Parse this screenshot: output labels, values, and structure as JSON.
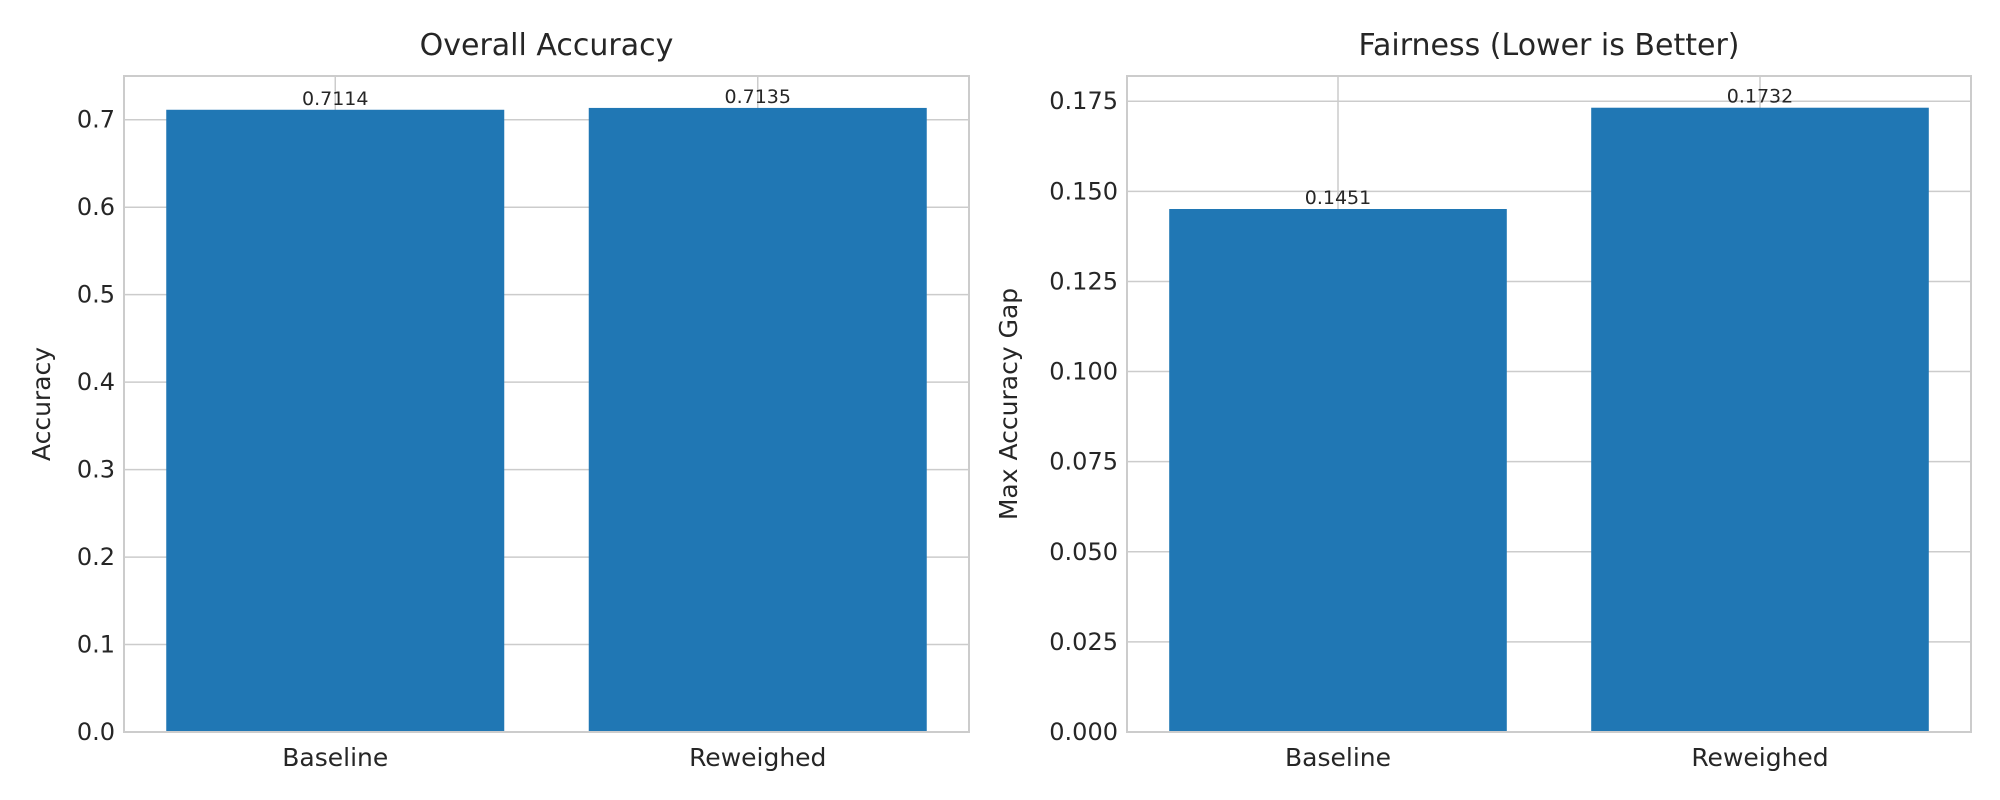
{
  "colors": {
    "bar": "#2077b4",
    "grid": "#cccccc",
    "axes_edge": "#cccccc",
    "text": "#262626"
  },
  "chart_data": [
    {
      "type": "bar",
      "title": "Overall Accuracy",
      "xlabel": "",
      "ylabel": "Accuracy",
      "categories": [
        "Baseline",
        "Reweighed"
      ],
      "values": [
        0.7114,
        0.7135
      ],
      "value_labels": [
        "0.7114",
        "0.7135"
      ],
      "ylim": [
        0,
        0.75
      ],
      "yticks": [
        0.0,
        0.1,
        0.2,
        0.3,
        0.4,
        0.5,
        0.6,
        0.7
      ],
      "ytick_labels": [
        "0.0",
        "0.1",
        "0.2",
        "0.3",
        "0.4",
        "0.5",
        "0.6",
        "0.7"
      ],
      "grid": true
    },
    {
      "type": "bar",
      "title": "Fairness (Lower is Better)",
      "xlabel": "",
      "ylabel": "Max Accuracy Gap",
      "categories": [
        "Baseline",
        "Reweighed"
      ],
      "values": [
        0.1451,
        0.1732
      ],
      "value_labels": [
        "0.1451",
        "0.1732"
      ],
      "ylim": [
        0,
        0.182
      ],
      "yticks": [
        0.0,
        0.025,
        0.05,
        0.075,
        0.1,
        0.125,
        0.15,
        0.175
      ],
      "ytick_labels": [
        "0.000",
        "0.025",
        "0.050",
        "0.075",
        "0.100",
        "0.125",
        "0.150",
        "0.175"
      ],
      "grid": true
    }
  ]
}
